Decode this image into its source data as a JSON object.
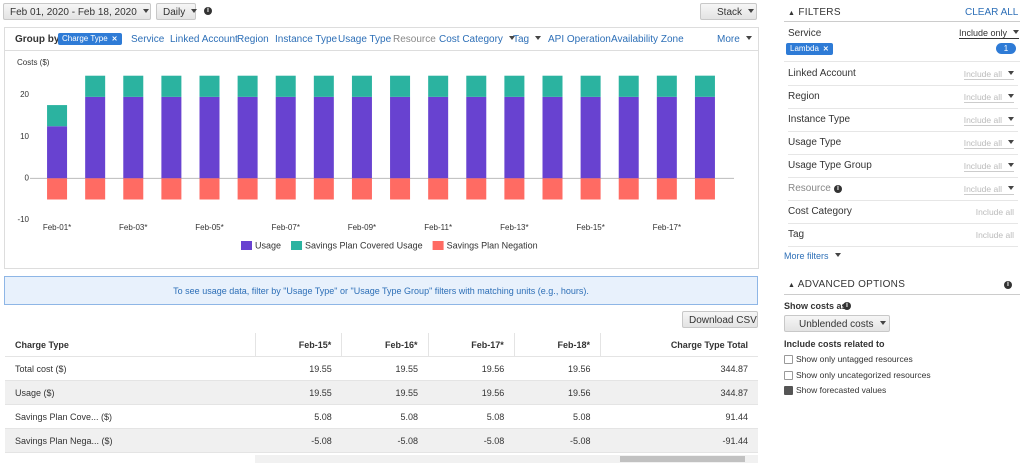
{
  "toolbar": {
    "date_range": "Feb 01, 2020 - Feb 18, 2020",
    "granularity": "Daily",
    "chart_style": "Stack"
  },
  "group_by": {
    "label": "Group by:",
    "selected": "Charge Type",
    "options": [
      "Service",
      "Linked Account",
      "Region",
      "Instance Type",
      "Usage Type",
      "Resource",
      "Cost Category",
      "Tag",
      "API Operation",
      "Availability Zone"
    ],
    "more": "More"
  },
  "chart_data": {
    "type": "bar",
    "stacked": true,
    "y_label": "Costs ($)",
    "categories": [
      "Feb-01*",
      null,
      "Feb-03*",
      null,
      "Feb-05*",
      null,
      "Feb-07*",
      null,
      "Feb-09*",
      null,
      "Feb-11*",
      null,
      "Feb-13*",
      null,
      "Feb-15*",
      null,
      "Feb-17*",
      null
    ],
    "series": [
      {
        "name": "Usage",
        "color": "#6842d0",
        "values": [
          12.5,
          19.55,
          19.55,
          19.55,
          19.55,
          19.55,
          19.55,
          19.55,
          19.55,
          19.55,
          19.55,
          19.55,
          19.55,
          19.55,
          19.55,
          19.55,
          19.56,
          19.56
        ]
      },
      {
        "name": "Savings Plan Covered Usage",
        "color": "#2bb3a0",
        "values": [
          5.08,
          5.08,
          5.08,
          5.08,
          5.08,
          5.08,
          5.08,
          5.08,
          5.08,
          5.08,
          5.08,
          5.08,
          5.08,
          5.08,
          5.08,
          5.08,
          5.08,
          5.08
        ]
      },
      {
        "name": "Savings Plan Negation",
        "color": "#ff6b63",
        "values": [
          -5.08,
          -5.08,
          -5.08,
          -5.08,
          -5.08,
          -5.08,
          -5.08,
          -5.08,
          -5.08,
          -5.08,
          -5.08,
          -5.08,
          -5.08,
          -5.08,
          -5.08,
          -5.08,
          -5.08,
          -5.08
        ]
      }
    ],
    "ylim": [
      -10,
      26
    ],
    "yticks": [
      -10,
      0,
      10,
      20
    ],
    "grid": false
  },
  "banner": "To see usage data, filter by \"Usage Type\" or \"Usage Type Group\" filters with matching units (e.g., hours).",
  "download": "Download CSV",
  "table": {
    "columns": [
      "Charge Type",
      "Feb-15*",
      "Feb-16*",
      "Feb-17*",
      "Feb-18*",
      "Charge Type Total"
    ],
    "rows": [
      [
        "Total cost ($)",
        19.55,
        19.55,
        19.56,
        19.56,
        344.87
      ],
      [
        "Usage ($)",
        19.55,
        19.55,
        19.56,
        19.56,
        344.87
      ],
      [
        "Savings Plan Cove... ($)",
        5.08,
        5.08,
        5.08,
        5.08,
        91.44
      ],
      [
        "Savings Plan Nega... ($)",
        -5.08,
        -5.08,
        -5.08,
        -5.08,
        -91.44
      ]
    ]
  },
  "filters": {
    "title": "FILTERS",
    "clear": "CLEAR ALL",
    "service": {
      "label": "Service",
      "mode": "Include only",
      "chip": "Lambda",
      "count": 1
    },
    "items": [
      {
        "label": "Linked Account",
        "mode": "Include all"
      },
      {
        "label": "Region",
        "mode": "Include all"
      },
      {
        "label": "Instance Type",
        "mode": "Include all"
      },
      {
        "label": "Usage Type",
        "mode": "Include all"
      },
      {
        "label": "Usage Type Group",
        "mode": "Include all"
      },
      {
        "label": "Resource",
        "mode": "Include all"
      },
      {
        "label": "Cost Category",
        "mode": "Include all"
      },
      {
        "label": "Tag",
        "mode": "Include all"
      }
    ],
    "more": "More filters"
  },
  "advanced": {
    "title": "ADVANCED OPTIONS",
    "show_costs_label": "Show costs as",
    "cost_type": "Unblended costs",
    "include_label": "Include costs related to",
    "options": [
      {
        "label": "Show only untagged resources",
        "checked": false
      },
      {
        "label": "Show only uncategorized resources",
        "checked": false
      },
      {
        "label": "Show forecasted values",
        "checked": true
      }
    ]
  }
}
